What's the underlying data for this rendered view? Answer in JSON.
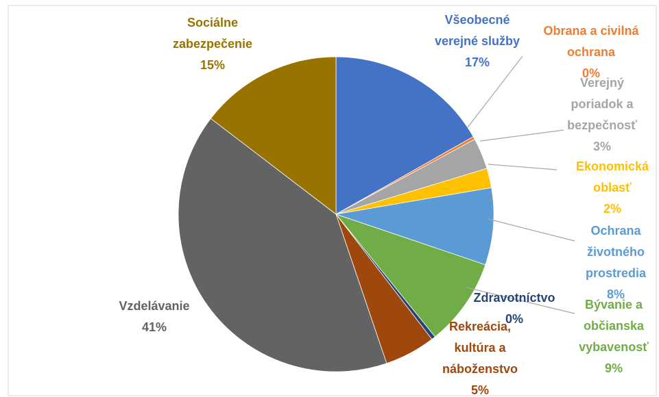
{
  "chart_data": {
    "type": "pie",
    "categories": [
      "Všeobecné verejné služby",
      "Obrana a civilná ochrana",
      "Verejný poriadok a bezpečnosť",
      "Ekonomická oblasť",
      "Ochrana životného prostredia",
      "Bývanie a občianska vybavenosť",
      "Zdravotníctvo",
      "Rekreácia, kultúra a náboženstvo",
      "Vzdelávanie",
      "Sociálne zabezpečenie"
    ],
    "values": [
      16.8,
      0.3,
      3.2,
      2.0,
      7.9,
      9.0,
      0.4,
      5.2,
      40.6,
      14.6
    ],
    "value_labels": [
      "17%",
      "0%",
      "3%",
      "2%",
      "8%",
      "9%",
      "0%",
      "5%",
      "41%",
      "15%"
    ],
    "colors": [
      "#4472c4",
      "#ed7d31",
      "#a5a5a5",
      "#ffc000",
      "#5b9bd5",
      "#70ad47",
      "#264478",
      "#9e480e",
      "#636363",
      "#997300"
    ]
  }
}
